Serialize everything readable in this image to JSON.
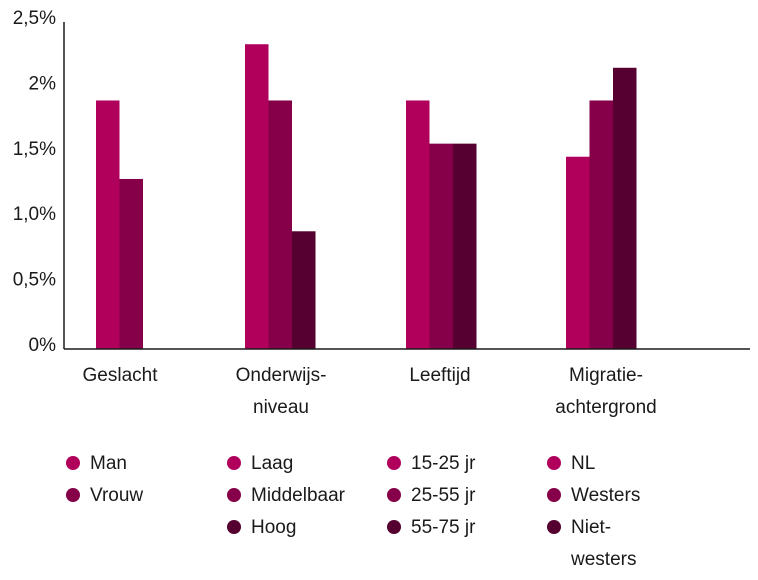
{
  "chart_data": {
    "type": "bar",
    "title": "",
    "xlabel": "",
    "ylabel": "",
    "ylim": [
      0,
      2.5
    ],
    "yticks": [
      {
        "value": 0,
        "label": "0%"
      },
      {
        "value": 0.5,
        "label": "0,5%"
      },
      {
        "value": 1.0,
        "label": "1,0%"
      },
      {
        "value": 1.5,
        "label": "1,5%"
      },
      {
        "value": 2.0,
        "label": "2%"
      },
      {
        "value": 2.5,
        "label": "2,5%"
      }
    ],
    "grid": false,
    "legend_placement": "bottom",
    "colors": [
      "#b0005c",
      "#850048",
      "#550030"
    ],
    "groups": [
      {
        "label_lines": [
          "Geslacht"
        ],
        "bars": [
          {
            "name": "Man",
            "value": 1.9
          },
          {
            "name": "Vrouw",
            "value": 1.3
          }
        ]
      },
      {
        "label_lines": [
          "Onderwijs-",
          "niveau"
        ],
        "bars": [
          {
            "name": "Laag",
            "value": 2.33
          },
          {
            "name": "Middelbaar",
            "value": 1.9
          },
          {
            "name": "Hoog",
            "value": 0.9
          }
        ]
      },
      {
        "label_lines": [
          "Leeftijd"
        ],
        "bars": [
          {
            "name": "15-25 jr",
            "value": 1.9
          },
          {
            "name": "25-55 jr",
            "value": 1.57
          },
          {
            "name": "55-75 jr",
            "value": 1.57
          }
        ]
      },
      {
        "label_lines": [
          "Migratie-",
          "achtergrond"
        ],
        "bars": [
          {
            "name": "NL",
            "value": 1.47
          },
          {
            "name": "Westers",
            "value": 1.9
          },
          {
            "name": "Niet-westers",
            "value": 2.15,
            "legend_lines": [
              "Niet-",
              "westers"
            ]
          }
        ]
      }
    ]
  }
}
